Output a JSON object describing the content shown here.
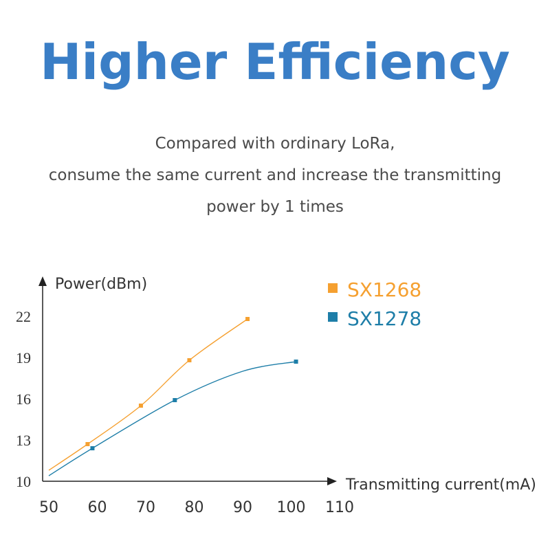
{
  "header": {
    "title": "Higher Efficiency",
    "subtitle_lines": [
      "Compared with ordinary LoRa,",
      "consume the same current and increase the transmitting",
      "power by 1 times"
    ]
  },
  "chart_data": {
    "type": "line",
    "title": "",
    "xlabel": "Transmitting current(mA)",
    "ylabel": "Power(dBm)",
    "xlim": [
      50,
      110
    ],
    "ylim": [
      10,
      23
    ],
    "x_ticks": [
      50,
      60,
      70,
      80,
      90,
      100,
      110
    ],
    "y_ticks": [
      10,
      13,
      16,
      19,
      22
    ],
    "grid": false,
    "legend_position": "top-right",
    "series": [
      {
        "name": "SX1268",
        "color": "#f5a030",
        "points": [
          [
            58,
            12.7
          ],
          [
            69,
            15.5
          ],
          [
            79,
            18.8
          ],
          [
            91,
            21.8
          ]
        ],
        "curve": [
          [
            50,
            10.8
          ],
          [
            58,
            12.7
          ],
          [
            69,
            15.5
          ],
          [
            79,
            18.8
          ],
          [
            91,
            21.8
          ]
        ]
      },
      {
        "name": "SX1278",
        "color": "#1e7ea8",
        "points": [
          [
            59,
            12.4
          ],
          [
            76,
            15.9
          ],
          [
            101,
            18.7
          ]
        ],
        "curve": [
          [
            50,
            10.4
          ],
          [
            59,
            12.4
          ],
          [
            76,
            15.9
          ],
          [
            90,
            18.0
          ],
          [
            101,
            18.7
          ]
        ]
      }
    ]
  }
}
